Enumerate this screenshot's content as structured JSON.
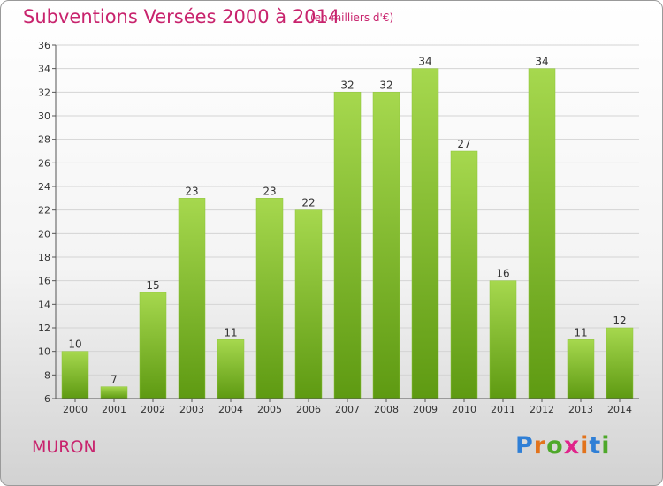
{
  "header": {
    "title": "Subventions Versées 2000 à 2014",
    "subtitle": "(en milliers d'€)"
  },
  "footer": {
    "commune": "MURON",
    "logo_text": "Proxiti"
  },
  "colors": {
    "title": "#c8236d",
    "bar_light": "#a6d84e",
    "bar_dark": "#5e9a12",
    "axis": "#555555",
    "grid": "#d4d4d4",
    "logo_letters": [
      "#2f7fd6",
      "#e2731c",
      "#4ea82a",
      "#e0248b",
      "#e2731c",
      "#2f7fd6",
      "#4ea82a"
    ]
  },
  "chart_data": {
    "type": "bar",
    "title": "Subventions Versées 2000 à 2014",
    "subtitle": "(en milliers d'€)",
    "xlabel": "",
    "ylabel": "",
    "categories": [
      "2000",
      "2001",
      "2002",
      "2003",
      "2004",
      "2005",
      "2006",
      "2007",
      "2008",
      "2009",
      "2010",
      "2011",
      "2012",
      "2013",
      "2014"
    ],
    "values": [
      10,
      7,
      15,
      23,
      11,
      23,
      22,
      32,
      32,
      34,
      27,
      16,
      34,
      11,
      12
    ],
    "ylim": [
      6,
      36
    ],
    "yticks": [
      6,
      8,
      10,
      12,
      14,
      16,
      18,
      20,
      22,
      24,
      26,
      28,
      30,
      32,
      34,
      36
    ],
    "grid": true,
    "data_labels": true
  }
}
